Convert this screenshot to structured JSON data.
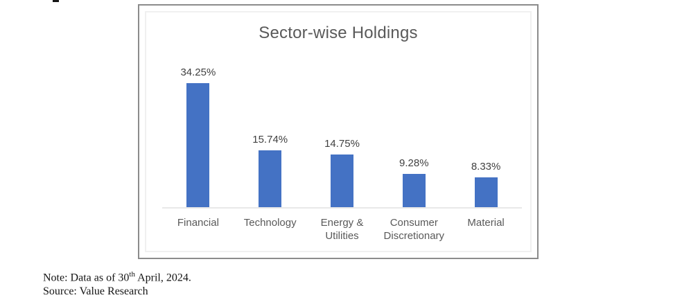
{
  "chart_data": {
    "type": "bar",
    "title": "Sector-wise Holdings",
    "categories": [
      "Financial",
      "Technology",
      "Energy & Utilities",
      "Consumer Discretionary",
      "Material"
    ],
    "values": [
      34.25,
      15.74,
      14.75,
      9.28,
      8.33
    ],
    "value_labels": [
      "34.25%",
      "15.74%",
      "14.75%",
      "9.28%",
      "8.33%"
    ],
    "xlabel": "",
    "ylabel": "",
    "ylim": [
      0,
      36
    ],
    "grid": false,
    "legend": false,
    "bar_color": "#4472C4",
    "title_color": "#595959",
    "value_label_color": "#404040",
    "category_label_color": "#595959",
    "axis_line_color": "#e8e8e8",
    "frame_border_color": "#8b8b8b"
  },
  "footer": {
    "note_prefix": "Note: Data as of 30",
    "note_superscript": "th",
    "note_suffix": " April, 2024.",
    "source": "Source: Value Research"
  }
}
